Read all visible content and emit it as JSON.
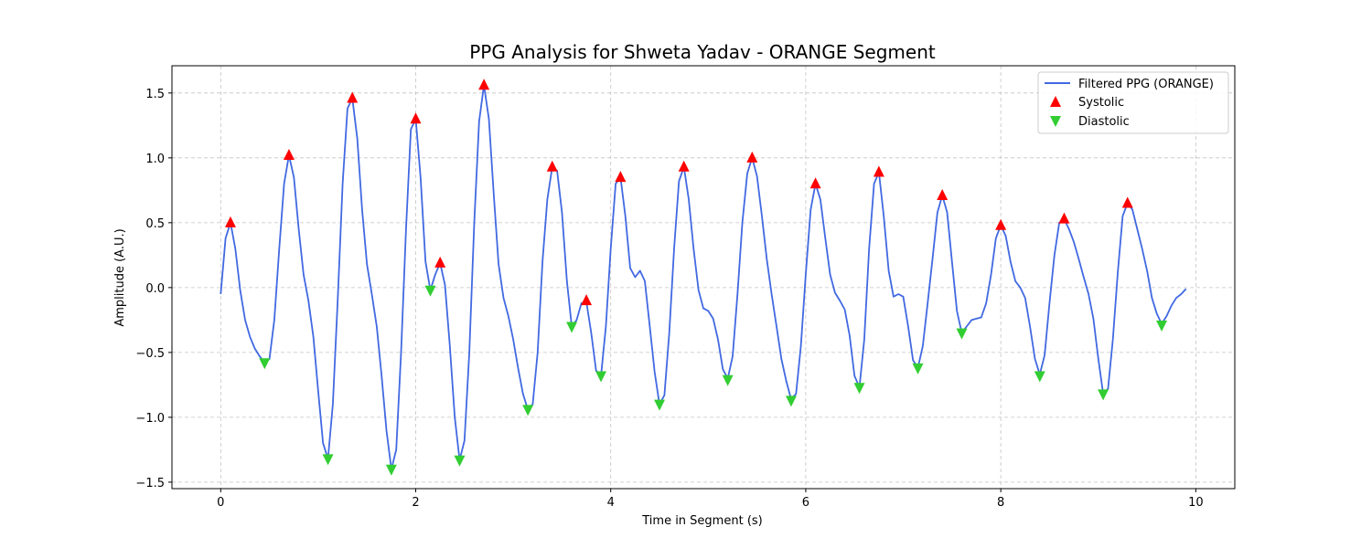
{
  "chart_data": {
    "type": "line",
    "title": "PPG Analysis for Shweta Yadav - ORANGE Segment",
    "xlabel": "Time in Segment (s)",
    "ylabel": "Amplitude (A.U.)",
    "xlim": [
      -0.5,
      10.4
    ],
    "ylim": [
      -1.55,
      1.71
    ],
    "x_ticks": [
      0,
      2,
      4,
      6,
      8,
      10
    ],
    "x_tick_labels": [
      "0",
      "2",
      "4",
      "6",
      "8",
      "10"
    ],
    "y_ticks": [
      -1.5,
      -1.0,
      -0.5,
      0.0,
      0.5,
      1.0,
      1.5
    ],
    "y_tick_labels": [
      "−1.5",
      "−1.0",
      "−0.5",
      "0.0",
      "0.5",
      "1.0",
      "1.5"
    ],
    "grid": true,
    "legend_position": "top-right",
    "colors": {
      "line": "#4169e1",
      "systolic": "#ff0000",
      "diastolic": "#32cd32"
    },
    "series": [
      {
        "name": "Filtered PPG (ORANGE)",
        "kind": "line",
        "x": [
          0.0,
          0.05,
          0.1,
          0.15,
          0.2,
          0.25,
          0.3,
          0.35,
          0.4,
          0.45,
          0.5,
          0.55,
          0.6,
          0.65,
          0.7,
          0.75,
          0.8,
          0.85,
          0.9,
          0.95,
          1.0,
          1.05,
          1.1,
          1.15,
          1.2,
          1.25,
          1.3,
          1.35,
          1.4,
          1.45,
          1.5,
          1.55,
          1.6,
          1.65,
          1.7,
          1.75,
          1.8,
          1.85,
          1.9,
          1.95,
          2.0,
          2.05,
          2.1,
          2.15,
          2.2,
          2.25,
          2.3,
          2.35,
          2.4,
          2.45,
          2.5,
          2.55,
          2.6,
          2.65,
          2.7,
          2.75,
          2.8,
          2.85,
          2.9,
          2.95,
          3.0,
          3.05,
          3.1,
          3.15,
          3.2,
          3.25,
          3.3,
          3.35,
          3.4,
          3.45,
          3.5,
          3.55,
          3.6,
          3.65,
          3.7,
          3.75,
          3.8,
          3.85,
          3.9,
          3.95,
          4.0,
          4.05,
          4.1,
          4.15,
          4.2,
          4.25,
          4.3,
          4.35,
          4.4,
          4.45,
          4.5,
          4.55,
          4.6,
          4.65,
          4.7,
          4.75,
          4.8,
          4.85,
          4.9,
          4.95,
          5.0,
          5.05,
          5.1,
          5.15,
          5.2,
          5.25,
          5.3,
          5.35,
          5.4,
          5.45,
          5.5,
          5.55,
          5.6,
          5.65,
          5.7,
          5.75,
          5.8,
          5.85,
          5.9,
          5.95,
          6.0,
          6.05,
          6.1,
          6.15,
          6.2,
          6.25,
          6.3,
          6.35,
          6.4,
          6.45,
          6.5,
          6.55,
          6.6,
          6.65,
          6.7,
          6.75,
          6.8,
          6.85,
          6.9,
          6.95,
          7.0,
          7.05,
          7.1,
          7.15,
          7.2,
          7.25,
          7.3,
          7.35,
          7.4,
          7.45,
          7.5,
          7.55,
          7.6,
          7.65,
          7.7,
          7.75,
          7.8,
          7.85,
          7.9,
          7.95,
          8.0,
          8.05,
          8.1,
          8.15,
          8.2,
          8.25,
          8.3,
          8.35,
          8.4,
          8.45,
          8.5,
          8.55,
          8.6,
          8.65,
          8.7,
          8.75,
          8.8,
          8.85,
          8.9,
          8.95,
          9.0,
          9.05,
          9.1,
          9.15,
          9.2,
          9.25,
          9.3,
          9.35,
          9.4,
          9.45,
          9.5,
          9.55,
          9.6,
          9.65,
          9.7,
          9.75,
          9.8,
          9.85,
          9.9
        ],
        "y": [
          -0.05,
          0.38,
          0.5,
          0.3,
          -0.02,
          -0.25,
          -0.38,
          -0.47,
          -0.53,
          -0.58,
          -0.55,
          -0.25,
          0.3,
          0.8,
          1.02,
          0.85,
          0.45,
          0.1,
          -0.1,
          -0.38,
          -0.8,
          -1.2,
          -1.32,
          -0.9,
          -0.1,
          0.8,
          1.38,
          1.46,
          1.15,
          0.6,
          0.18,
          -0.05,
          -0.3,
          -0.68,
          -1.1,
          -1.4,
          -1.25,
          -0.5,
          0.45,
          1.22,
          1.3,
          0.85,
          0.2,
          -0.02,
          0.1,
          0.19,
          0.02,
          -0.45,
          -1.0,
          -1.33,
          -1.18,
          -0.5,
          0.5,
          1.28,
          1.56,
          1.3,
          0.72,
          0.18,
          -0.08,
          -0.22,
          -0.4,
          -0.62,
          -0.82,
          -0.94,
          -0.9,
          -0.5,
          0.2,
          0.68,
          0.93,
          0.9,
          0.58,
          0.05,
          -0.3,
          -0.25,
          -0.12,
          -0.11,
          -0.35,
          -0.64,
          -0.68,
          -0.3,
          0.3,
          0.8,
          0.85,
          0.55,
          0.15,
          0.08,
          0.13,
          0.05,
          -0.3,
          -0.65,
          -0.9,
          -0.83,
          -0.35,
          0.3,
          0.82,
          0.93,
          0.68,
          0.3,
          -0.02,
          -0.16,
          -0.18,
          -0.24,
          -0.4,
          -0.63,
          -0.7,
          -0.53,
          -0.05,
          0.5,
          0.88,
          1.0,
          0.86,
          0.55,
          0.22,
          -0.05,
          -0.3,
          -0.55,
          -0.72,
          -0.86,
          -0.82,
          -0.45,
          0.1,
          0.6,
          0.8,
          0.68,
          0.38,
          0.1,
          -0.04,
          -0.1,
          -0.17,
          -0.37,
          -0.68,
          -0.77,
          -0.4,
          0.3,
          0.8,
          0.89,
          0.55,
          0.13,
          -0.07,
          -0.05,
          -0.07,
          -0.3,
          -0.56,
          -0.62,
          -0.45,
          -0.12,
          0.22,
          0.58,
          0.71,
          0.58,
          0.2,
          -0.18,
          -0.35,
          -0.3,
          -0.25,
          -0.24,
          -0.23,
          -0.12,
          0.1,
          0.38,
          0.48,
          0.4,
          0.2,
          0.05,
          0.0,
          -0.08,
          -0.3,
          -0.55,
          -0.67,
          -0.52,
          -0.12,
          0.25,
          0.5,
          0.53,
          0.45,
          0.35,
          0.22,
          0.08,
          -0.05,
          -0.24,
          -0.55,
          -0.82,
          -0.78,
          -0.4,
          0.12,
          0.55,
          0.65,
          0.6,
          0.45,
          0.3,
          0.13,
          -0.08,
          -0.2,
          -0.28,
          -0.22,
          -0.14,
          -0.08,
          -0.05,
          -0.01
        ]
      },
      {
        "name": "Systolic",
        "kind": "markers",
        "marker": "triangle-up",
        "x": [
          0.1,
          0.7,
          1.35,
          2.0,
          2.25,
          2.7,
          3.4,
          3.75,
          4.1,
          4.75,
          5.45,
          6.1,
          6.75,
          7.4,
          8.0,
          8.65,
          9.3
        ],
        "y": [
          0.5,
          1.02,
          1.46,
          1.3,
          0.19,
          1.56,
          0.93,
          -0.1,
          0.85,
          0.93,
          1.0,
          0.8,
          0.89,
          0.71,
          0.48,
          0.53,
          0.65
        ]
      },
      {
        "name": "Diastolic",
        "kind": "markers",
        "marker": "triangle-down",
        "x": [
          0.45,
          1.1,
          1.75,
          2.15,
          2.45,
          3.15,
          3.6,
          3.9,
          4.5,
          5.2,
          5.85,
          6.55,
          7.15,
          7.6,
          8.4,
          9.05,
          9.65
        ],
        "y": [
          -0.58,
          -1.32,
          -1.4,
          -0.02,
          -1.33,
          -0.94,
          -0.3,
          -0.68,
          -0.9,
          -0.71,
          -0.87,
          -0.77,
          -0.62,
          -0.35,
          -0.68,
          -0.82,
          -0.29
        ]
      }
    ]
  }
}
